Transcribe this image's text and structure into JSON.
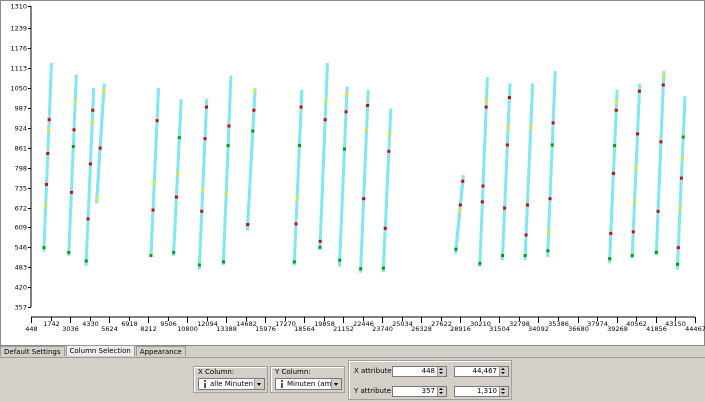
{
  "tabs": [
    {
      "label": "Default Settings",
      "active": false
    },
    {
      "label": "Column Selection",
      "active": true
    },
    {
      "label": "Appearance",
      "active": false
    }
  ],
  "x_column": {
    "title": "X Column:",
    "value": "alle Minuten",
    "icon": "integer-column-icon"
  },
  "y_column": {
    "title": "Y Column:",
    "value": "Minuten (am Tag)",
    "icon": "integer-column-icon"
  },
  "x_attribute": {
    "label": "X attribute",
    "min": "448",
    "max": "44,467"
  },
  "y_attribute": {
    "label": "Y attribute",
    "min": "357",
    "max": "1,310"
  },
  "colors": {
    "main": "#7fe8f2",
    "red": "#e00000",
    "yellow": "#f5e600",
    "green": "#00a000",
    "background": "#ffffff",
    "panel": "#d4d0c8"
  },
  "chart_data": {
    "type": "scatter",
    "xlim": [
      448,
      44467
    ],
    "ylim": [
      357,
      1310
    ],
    "y_ticks": [
      357,
      420,
      483,
      546,
      609,
      672,
      735,
      798,
      861,
      924,
      987,
      1050,
      1113,
      1176,
      1239,
      1310
    ],
    "x_ticks_row1": [
      1742,
      4330,
      6918,
      9506,
      12094,
      14682,
      17270,
      19858,
      22446,
      25034,
      27622,
      30210,
      32798,
      35386,
      37974,
      40562,
      43150
    ],
    "x_ticks_row2": [
      448,
      3036,
      5624,
      8212,
      10800,
      13388,
      15976,
      18564,
      21152,
      23740,
      26328,
      28916,
      31504,
      34092,
      36680,
      39268,
      41856,
      44467
    ],
    "days": [
      {
        "x0": 1300,
        "x1": 1800,
        "ymin": 537,
        "ymax": 1125,
        "green": [
          545
        ],
        "red": [
          745,
          843,
          950
        ],
        "yellow": [
          680,
          920
        ]
      },
      {
        "x0": 2950,
        "x1": 3450,
        "ymin": 523,
        "ymax": 1088,
        "green": [
          530,
          865
        ],
        "red": [
          720,
          918
        ],
        "yellow": [
          1010
        ]
      },
      {
        "x0": 4100,
        "x1": 4600,
        "ymin": 492,
        "ymax": 1045,
        "green": [
          503
        ],
        "red": [
          636,
          810,
          980
        ],
        "yellow": [
          940
        ]
      },
      {
        "x0": 4800,
        "x1": 5300,
        "ymin": 690,
        "ymax": 1060,
        "green": [],
        "red": [
          860
        ],
        "yellow": [
          700,
          1040
        ]
      },
      {
        "x0": 8400,
        "x1": 8900,
        "ymin": 520,
        "ymax": 1045,
        "green": [
          520
        ],
        "red": [
          664,
          947
        ],
        "yellow": [
          750
        ]
      },
      {
        "x0": 9900,
        "x1": 10400,
        "ymin": 523,
        "ymax": 1010,
        "green": [
          530,
          893
        ],
        "red": [
          705
        ],
        "yellow": [
          780
        ]
      },
      {
        "x0": 11600,
        "x1": 12100,
        "ymin": 480,
        "ymax": 1012,
        "green": [
          490
        ],
        "red": [
          660,
          890,
          990
        ],
        "yellow": [
          725
        ]
      },
      {
        "x0": 13200,
        "x1": 13700,
        "ymin": 495,
        "ymax": 1085,
        "green": [
          500,
          868
        ],
        "red": [
          930
        ],
        "yellow": [
          718
        ]
      },
      {
        "x0": 14800,
        "x1": 15300,
        "ymin": 605,
        "ymax": 1045,
        "green": [
          914
        ],
        "red": [
          618,
          980
        ],
        "yellow": [
          1040
        ]
      },
      {
        "x0": 17900,
        "x1": 18400,
        "ymin": 493,
        "ymax": 1040,
        "green": [
          500,
          868
        ],
        "red": [
          620,
          990
        ],
        "yellow": [
          700
        ]
      },
      {
        "x0": 19600,
        "x1": 20100,
        "ymin": 542,
        "ymax": 1125,
        "green": [
          546
        ],
        "red": [
          565,
          950
        ],
        "yellow": [
          1010
        ]
      },
      {
        "x0": 20900,
        "x1": 21400,
        "ymin": 490,
        "ymax": 1050,
        "green": [
          505,
          857
        ],
        "red": [
          975
        ],
        "yellow": [
          1030
        ]
      },
      {
        "x0": 22300,
        "x1": 22800,
        "ymin": 470,
        "ymax": 1040,
        "green": [
          478
        ],
        "red": [
          700,
          995
        ],
        "yellow": [
          920
        ]
      },
      {
        "x0": 23800,
        "x1": 24300,
        "ymin": 472,
        "ymax": 980,
        "green": [
          480
        ],
        "red": [
          606,
          850
        ],
        "yellow": [
          905
        ]
      },
      {
        "x0": 28600,
        "x1": 29100,
        "ymin": 530,
        "ymax": 770,
        "green": [
          540
        ],
        "red": [
          680,
          755
        ],
        "yellow": [
          660
        ]
      },
      {
        "x0": 30200,
        "x1": 30700,
        "ymin": 488,
        "ymax": 1080,
        "green": [
          495
        ],
        "red": [
          690,
          740,
          990
        ],
        "yellow": [
          1010
        ]
      },
      {
        "x0": 31700,
        "x1": 32200,
        "ymin": 510,
        "ymax": 1060,
        "green": [
          520
        ],
        "red": [
          670,
          870,
          1020
        ],
        "yellow": [
          925
        ]
      },
      {
        "x0": 33200,
        "x1": 33700,
        "ymin": 510,
        "ymax": 1060,
        "green": [
          520
        ],
        "red": [
          585,
          680
        ],
        "yellow": [
          925
        ]
      },
      {
        "x0": 34700,
        "x1": 35200,
        "ymin": 520,
        "ymax": 1100,
        "green": [
          535,
          870
        ],
        "red": [
          700,
          940
        ],
        "yellow": [
          595
        ]
      },
      {
        "x0": 38800,
        "x1": 39300,
        "ymin": 500,
        "ymax": 1040,
        "green": [
          510,
          868
        ],
        "red": [
          590,
          780,
          980
        ],
        "yellow": [
          1005
        ]
      },
      {
        "x0": 40300,
        "x1": 40800,
        "ymin": 515,
        "ymax": 1060,
        "green": [
          520
        ],
        "red": [
          595,
          905,
          1040
        ],
        "yellow": [
          690,
          800
        ]
      },
      {
        "x0": 41900,
        "x1": 42400,
        "ymin": 525,
        "ymax": 1100,
        "green": [
          530
        ],
        "red": [
          660,
          880,
          1060
        ],
        "yellow": [
          1090
        ]
      },
      {
        "x0": 43300,
        "x1": 43800,
        "ymin": 480,
        "ymax": 1020,
        "green": [
          492,
          895
        ],
        "red": [
          545,
          765
        ],
        "yellow": [
          825,
          670
        ]
      }
    ]
  }
}
